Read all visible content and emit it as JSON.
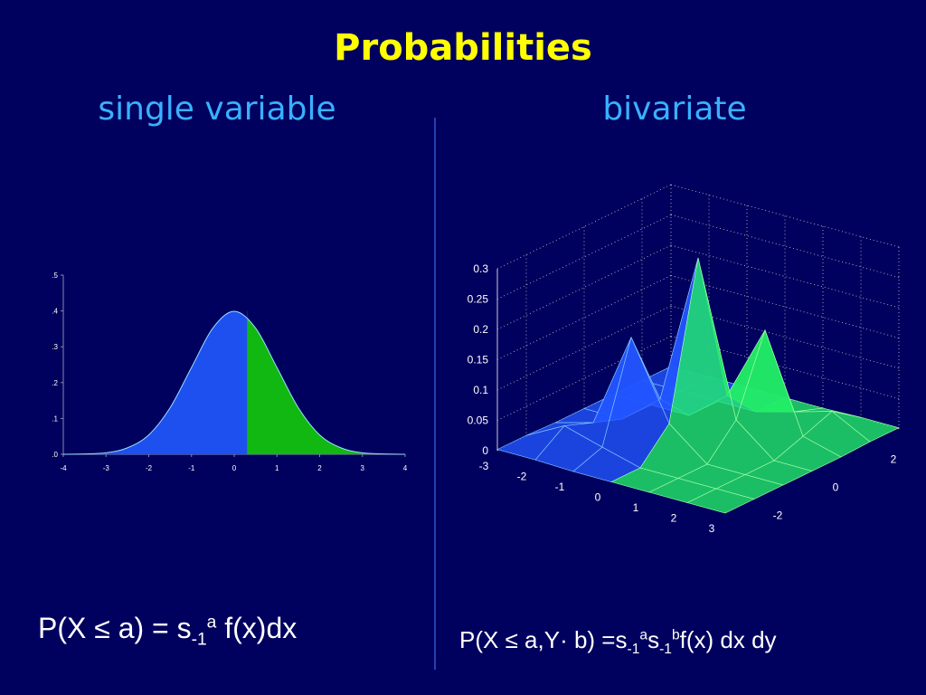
{
  "title": "Probabilities",
  "left_heading": "single variable",
  "right_heading": "bivariate",
  "formula_left": {
    "main": "P(X ≤ a) = s",
    "sub": "-1",
    "sup": "a",
    "rest": " f(x)dx"
  },
  "formula_right": {
    "main": "P(X ≤ a,Y· b) =s",
    "sub1": "-1",
    "sup1": "a",
    "mid": "s",
    "sub2": "-1",
    "sup2": "b",
    "rest": "f(x) dx dy"
  },
  "chart_data": [
    {
      "type": "area",
      "x": [
        -4,
        -3.5,
        -3,
        -2.5,
        -2,
        -1.5,
        -1,
        -0.5,
        0,
        0.5,
        1,
        1.5,
        2,
        2.5,
        3,
        3.5,
        4
      ],
      "values": [
        0,
        0.001,
        0.004,
        0.018,
        0.054,
        0.13,
        0.242,
        0.352,
        0.399,
        0.352,
        0.242,
        0.13,
        0.054,
        0.018,
        0.004,
        0.001,
        0
      ],
      "shade_to": 0.3,
      "colors": [
        "#1e50f0",
        "#12b812"
      ],
      "xlim": [
        -4,
        4
      ],
      "ylim": [
        0,
        0.5
      ],
      "xticks": [
        -4,
        -3,
        -2,
        -1,
        0,
        1,
        2,
        3,
        4
      ],
      "yticks": [
        {
          "value": 0,
          "label": ".0"
        },
        {
          "value": 0.1,
          "label": ".1"
        },
        {
          "value": 0.2,
          "label": ".2"
        },
        {
          "value": 0.3,
          "label": ".3"
        },
        {
          "value": 0.4,
          "label": ".4"
        },
        {
          "value": 0.5,
          "label": ".5"
        }
      ]
    },
    {
      "type": "surface",
      "x": [
        -3,
        -2,
        -1,
        0,
        1,
        2,
        3
      ],
      "y": [
        -3,
        -2,
        -1,
        0,
        1,
        2,
        3
      ],
      "z": [
        [
          0.002,
          0.002,
          0,
          0,
          0,
          0,
          0
        ],
        [
          0.002,
          0.035,
          0.017,
          0,
          0,
          0,
          0
        ],
        [
          0,
          0.017,
          0.175,
          0.05,
          0,
          0,
          0
        ],
        [
          0,
          0,
          0.05,
          0.3,
          0.05,
          0,
          0
        ],
        [
          0,
          0,
          0,
          0.05,
          0.175,
          0.017,
          0
        ],
        [
          0,
          0,
          0,
          0,
          0.017,
          0.035,
          0.002
        ],
        [
          0,
          0,
          0,
          0,
          0,
          0.002,
          0.002
        ]
      ],
      "colors": [
        "#2255ff",
        "#22ee66"
      ],
      "xlim": [
        -3,
        3
      ],
      "ylim": [
        -3,
        3
      ],
      "zlim": [
        0,
        0.3
      ],
      "xticks": [
        -3,
        -2,
        -1,
        0,
        1,
        2,
        3
      ],
      "yticks": [
        -2,
        0,
        2
      ],
      "zticks": [
        0,
        0.05,
        0.1,
        0.15,
        0.2,
        0.25,
        0.3
      ],
      "grid": true
    }
  ]
}
